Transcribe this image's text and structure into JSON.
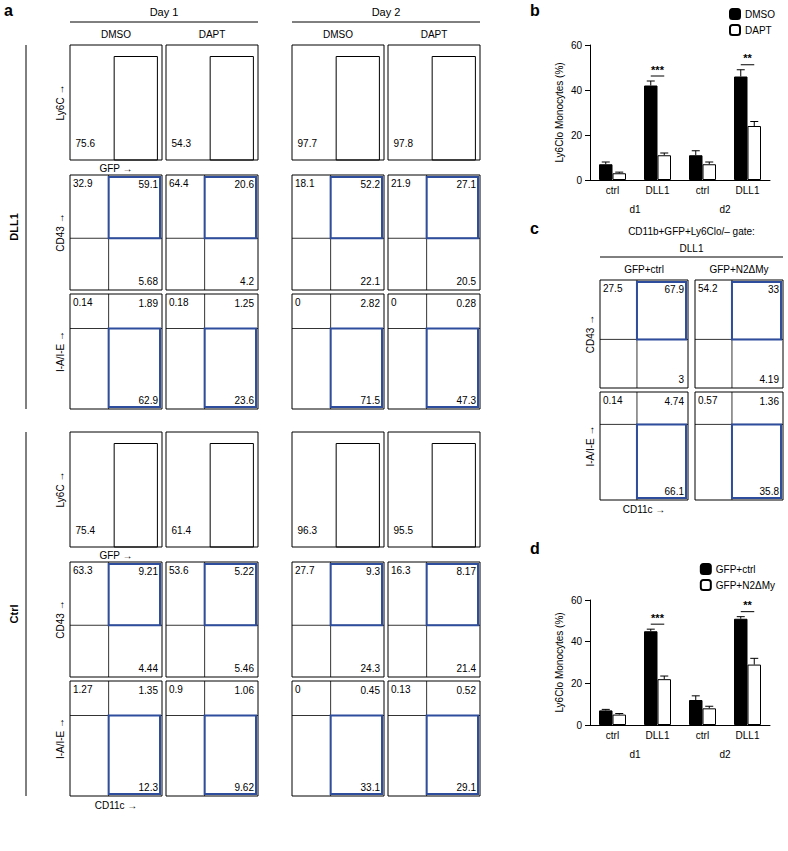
{
  "panel_labels": [
    "a",
    "b",
    "c",
    "d"
  ],
  "panel_a": {
    "column_groups": [
      "Day 1",
      "Day 2"
    ],
    "columns": [
      "DMSO",
      "DAPT",
      "DMSO",
      "DAPT"
    ],
    "axis_labels": {
      "ly6c": "Ly6C →",
      "gfp": "GFP →",
      "cd43": "CD43 →",
      "cd11c": "CD11c →",
      "mhc": "I-A/I-E →"
    },
    "sections": [
      {
        "label": "DLL1",
        "gfp": [
          75.6,
          54.3,
          97.7,
          97.8
        ],
        "cd43": [
          [
            32.9,
            59.1,
            5.68
          ],
          [
            64.4,
            20.6,
            4.2
          ],
          [
            18.1,
            52.2,
            22.1
          ],
          [
            21.9,
            27.1,
            20.5
          ]
        ],
        "mhc": [
          [
            0.14,
            1.89,
            62.9
          ],
          [
            0.18,
            1.25,
            23.6
          ],
          [
            0,
            2.82,
            71.5
          ],
          [
            0,
            0.28,
            47.3
          ]
        ]
      },
      {
        "label": "Ctrl",
        "gfp": [
          75.4,
          61.4,
          96.3,
          95.5
        ],
        "cd43": [
          [
            63.3,
            9.21,
            4.44
          ],
          [
            53.6,
            5.22,
            5.46
          ],
          [
            27.7,
            9.3,
            24.3
          ],
          [
            16.3,
            8.17,
            21.4
          ]
        ],
        "mhc": [
          [
            1.27,
            1.35,
            12.3
          ],
          [
            0.9,
            1.06,
            9.62
          ],
          [
            0,
            0.45,
            33.1
          ],
          [
            0.13,
            0.52,
            29.1
          ]
        ]
      }
    ]
  },
  "panel_c": {
    "title": "CD11b+GFP+Ly6Clo/– gate:",
    "subtitle": "DLL1",
    "columns": [
      "GFP+ctrl",
      "GFP+N2ΔMy"
    ],
    "axis_labels": {
      "cd43": "CD43 →",
      "cd11c": "CD11c →",
      "mhc": "I-A/I-E →"
    },
    "cd43": [
      [
        27.5,
        67.9,
        3
      ],
      [
        54.2,
        33,
        4.19
      ]
    ],
    "mhc": [
      [
        0.14,
        4.74,
        66.1
      ],
      [
        0.57,
        1.36,
        35.8
      ]
    ]
  },
  "chart_data": [
    {
      "type": "bar",
      "categories": [
        "ctrl",
        "DLL1",
        "ctrl",
        "DLL1"
      ],
      "groups": [
        "d1",
        "d2"
      ],
      "ylabel": "Ly6Clo Monocytes (%)",
      "ylim": [
        0,
        60
      ],
      "yticks": [
        0,
        20,
        40,
        60
      ],
      "grid": false,
      "legend": "upper right",
      "series": [
        {
          "name": "DMSO",
          "color": "#000000",
          "values": [
            7,
            42,
            11,
            46
          ],
          "errors": [
            1,
            2,
            2,
            3
          ]
        },
        {
          "name": "DAPT",
          "color": "#ffffff",
          "values": [
            3,
            11,
            7,
            24
          ],
          "errors": [
            0.5,
            1,
            1,
            2
          ]
        }
      ],
      "annotations": [
        {
          "text": "***",
          "at": 1
        },
        {
          "text": "**",
          "at": 3
        }
      ]
    },
    {
      "type": "bar",
      "categories": [
        "ctrl",
        "DLL1",
        "ctrl",
        "DLL1"
      ],
      "groups": [
        "d1",
        "d2"
      ],
      "ylabel": "Ly6Clo Monocytes (%)",
      "ylim": [
        0,
        60
      ],
      "yticks": [
        0,
        20,
        40,
        60
      ],
      "grid": false,
      "legend": "upper right",
      "series": [
        {
          "name": "GFP+ctrl",
          "color": "#000000",
          "values": [
            7,
            45,
            12,
            51
          ],
          "errors": [
            0.5,
            1,
            2,
            1
          ]
        },
        {
          "name": "GFP+N2ΔMy",
          "color": "#ffffff",
          "values": [
            5,
            22,
            8,
            29
          ],
          "errors": [
            0.5,
            1.5,
            1,
            3
          ]
        }
      ],
      "annotations": [
        {
          "text": "***",
          "at": 1
        },
        {
          "text": "**",
          "at": 3
        }
      ]
    }
  ]
}
